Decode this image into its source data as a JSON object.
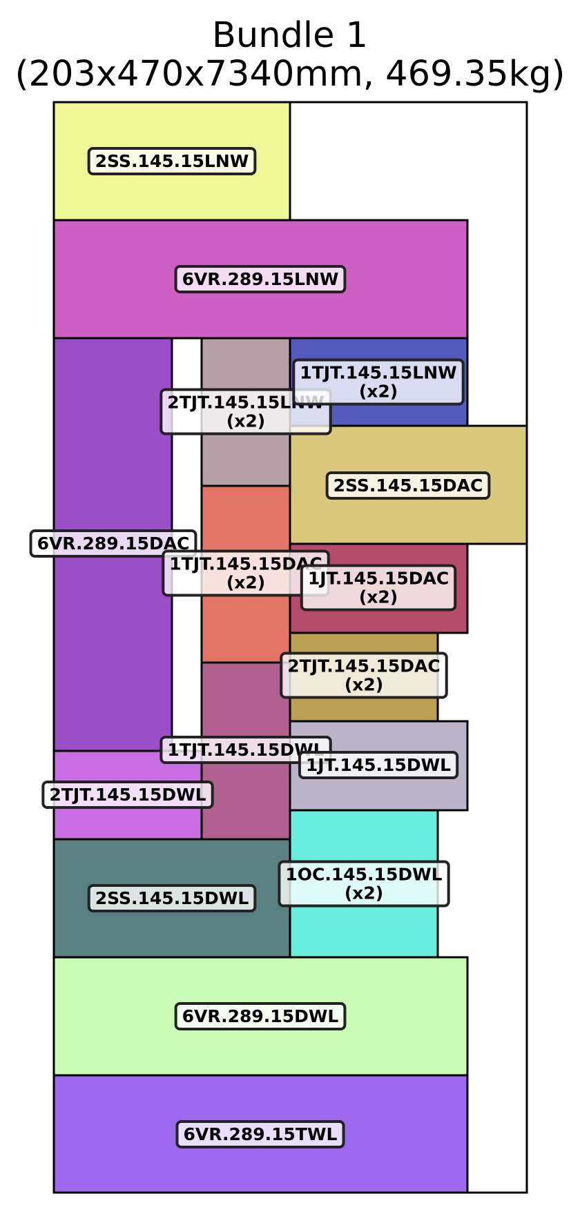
{
  "title": {
    "line1": "Bundle 1",
    "line2": "(203x470x7340mm, 469.35kg)"
  },
  "pieces": [
    {
      "id": "2SS.145.15LNW",
      "qty": "",
      "color": "#eff696"
    },
    {
      "id": "6VR.289.15LNW",
      "qty": "",
      "color": "#ce60c4"
    },
    {
      "id": "6VR.289.15DAC",
      "qty": "",
      "color": "#9a4fc8"
    },
    {
      "id": "2TJT.145.15LNW",
      "qty": "(x2)",
      "color": "#b4a0a6"
    },
    {
      "id": "1TJT.145.15LNW",
      "qty": "(x2)",
      "color": "#535cbc"
    },
    {
      "id": "2SS.145.15DAC",
      "qty": "",
      "color": "#dac87c"
    },
    {
      "id": "1TJT.145.15DAC",
      "qty": "(x2)",
      "color": "#e37567"
    },
    {
      "id": "1JT.145.15DAC",
      "qty": "(x2)",
      "color": "#b64b6b"
    },
    {
      "id": "2TJT.145.15DAC",
      "qty": "(x2)",
      "color": "#b9a055"
    },
    {
      "id": "1TJT.145.15DWL",
      "qty": "",
      "color": "#b0618f"
    },
    {
      "id": "1JT.145.15DWL",
      "qty": "",
      "color": "#b9b4c8"
    },
    {
      "id": "2TJT.145.15DWL",
      "qty": "",
      "color": "#c86ee2"
    },
    {
      "id": "2SS.145.15DWL",
      "qty": "",
      "color": "#5a7f81"
    },
    {
      "id": "1OC.145.15DWL",
      "qty": "(x2)",
      "color": "#69eedd"
    },
    {
      "id": "6VR.289.15DWL",
      "qty": "",
      "color": "#c9fcb4"
    },
    {
      "id": "6VR.289.15TWL",
      "qty": "",
      "color": "#9c68ee"
    }
  ]
}
